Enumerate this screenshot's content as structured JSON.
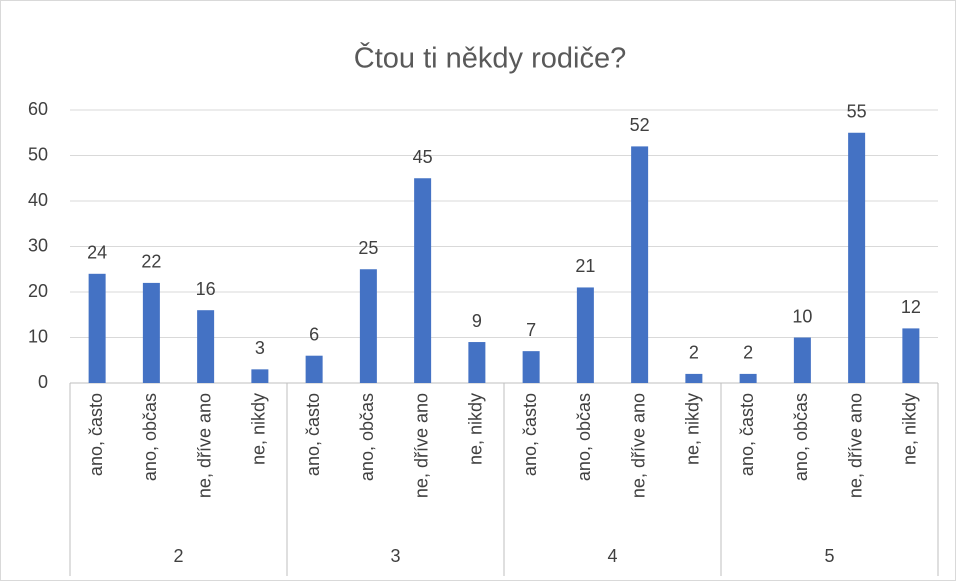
{
  "chart_data": {
    "type": "bar",
    "title": "Čtou ti někdy rodiče?",
    "categories": [
      "ano, často",
      "ano, občas",
      "ne, dříve ano",
      "ne, nikdy",
      "ano, často",
      "ano, občas",
      "ne, dříve ano",
      "ne, nikdy",
      "ano, často",
      "ano, občas",
      "ne, dříve ano",
      "ne, nikdy",
      "ano, často",
      "ano, občas",
      "ne, dříve ano",
      "ne, nikdy"
    ],
    "groups": [
      "2",
      "3",
      "4",
      "5"
    ],
    "values": [
      24,
      22,
      16,
      3,
      6,
      25,
      45,
      9,
      7,
      21,
      52,
      2,
      2,
      10,
      55,
      12
    ],
    "color": "#4472c4",
    "ylim": [
      0,
      60
    ],
    "yticks": [
      0,
      10,
      20,
      30,
      40,
      50,
      60
    ],
    "grid": true
  }
}
